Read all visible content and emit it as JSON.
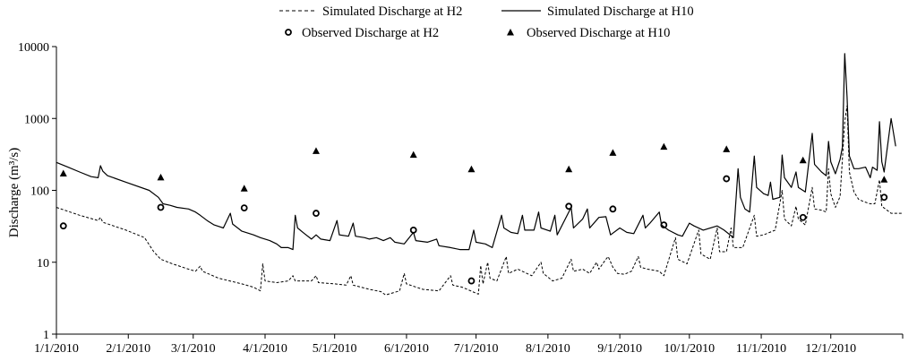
{
  "chart_data": {
    "type": "line",
    "title": "",
    "xlabel": "",
    "ylabel": "Discharge (m³/s)",
    "yscale": "log",
    "ylim": [
      1,
      10000
    ],
    "xlim": [
      0,
      365
    ],
    "y_ticks": [
      {
        "value": 1,
        "label": "1"
      },
      {
        "value": 10,
        "label": "10"
      },
      {
        "value": 100,
        "label": "100"
      },
      {
        "value": 1000,
        "label": "1000"
      },
      {
        "value": 10000,
        "label": "10000"
      }
    ],
    "x_ticks": [
      {
        "day": 0,
        "label": "1/1/2010"
      },
      {
        "day": 31,
        "label": "2/1/2010"
      },
      {
        "day": 59,
        "label": "3/1/2010"
      },
      {
        "day": 90,
        "label": "4/1/2010"
      },
      {
        "day": 120,
        "label": "5/1/2010"
      },
      {
        "day": 151,
        "label": "6/1/2010"
      },
      {
        "day": 181,
        "label": "7/1/2010"
      },
      {
        "day": 212,
        "label": "8/1/2010"
      },
      {
        "day": 243,
        "label": "9/1/2010"
      },
      {
        "day": 273,
        "label": "10/1/2010"
      },
      {
        "day": 304,
        "label": "11/1/2010"
      },
      {
        "day": 334,
        "label": "12/1/2010"
      }
    ],
    "grid": false,
    "legend_position": "top",
    "series": [
      {
        "name": "Simulated Discharge at H2",
        "style": "dashed-line",
        "points": [
          [
            0,
            58
          ],
          [
            10,
            45
          ],
          [
            18,
            38
          ],
          [
            19,
            42
          ],
          [
            20,
            36
          ],
          [
            30,
            28
          ],
          [
            38,
            22
          ],
          [
            42,
            14
          ],
          [
            45,
            11
          ],
          [
            50,
            9.5
          ],
          [
            57,
            8
          ],
          [
            60,
            7.5
          ],
          [
            62,
            8.8
          ],
          [
            63,
            7.5
          ],
          [
            70,
            6
          ],
          [
            80,
            5
          ],
          [
            85,
            4.5
          ],
          [
            88,
            4
          ],
          [
            89,
            9.5
          ],
          [
            90,
            5.5
          ],
          [
            95,
            5.2
          ],
          [
            100,
            5.5
          ],
          [
            102,
            6.5
          ],
          [
            103,
            5.5
          ],
          [
            110,
            5.5
          ],
          [
            112,
            6.5
          ],
          [
            113,
            5.2
          ],
          [
            120,
            5
          ],
          [
            125,
            4.8
          ],
          [
            127,
            6.5
          ],
          [
            128,
            4.8
          ],
          [
            135,
            4.2
          ],
          [
            140,
            3.9
          ],
          [
            142,
            3.5
          ],
          [
            148,
            4
          ],
          [
            150,
            7
          ],
          [
            151,
            5
          ],
          [
            158,
            4.2
          ],
          [
            165,
            4
          ],
          [
            170,
            6.5
          ],
          [
            171,
            4.8
          ],
          [
            175,
            4.5
          ],
          [
            182,
            3.6
          ],
          [
            183,
            9
          ],
          [
            184,
            5
          ],
          [
            186,
            10
          ],
          [
            187,
            6
          ],
          [
            190,
            5.5
          ],
          [
            194,
            12
          ],
          [
            195,
            7
          ],
          [
            199,
            8
          ],
          [
            205,
            6.5
          ],
          [
            209,
            10
          ],
          [
            210,
            7
          ],
          [
            214,
            5.5
          ],
          [
            218,
            6
          ],
          [
            222,
            11
          ],
          [
            223,
            7.5
          ],
          [
            227,
            8
          ],
          [
            230,
            7
          ],
          [
            233,
            10
          ],
          [
            234,
            8
          ],
          [
            237,
            11
          ],
          [
            238,
            12
          ],
          [
            240,
            8.5
          ],
          [
            242,
            7
          ],
          [
            245,
            6.8
          ],
          [
            248,
            7.5
          ],
          [
            251,
            12
          ],
          [
            252,
            8.5
          ],
          [
            255,
            8
          ],
          [
            260,
            7.5
          ],
          [
            262,
            6.5
          ],
          [
            267,
            22
          ],
          [
            268,
            11
          ],
          [
            272,
            9.5
          ],
          [
            277,
            28
          ],
          [
            278,
            13
          ],
          [
            282,
            11
          ],
          [
            285,
            30
          ],
          [
            286,
            14
          ],
          [
            289,
            14
          ],
          [
            291,
            30
          ],
          [
            292,
            16
          ],
          [
            296,
            16
          ],
          [
            301,
            45
          ],
          [
            302,
            23
          ],
          [
            305,
            24
          ],
          [
            310,
            28
          ],
          [
            313,
            100
          ],
          [
            314,
            40
          ],
          [
            317,
            32
          ],
          [
            319,
            60
          ],
          [
            320,
            40
          ],
          [
            323,
            33
          ],
          [
            326,
            110
          ],
          [
            327,
            55
          ],
          [
            330,
            53
          ],
          [
            332,
            50
          ],
          [
            333,
            200
          ],
          [
            334,
            90
          ],
          [
            336,
            58
          ],
          [
            338,
            82
          ],
          [
            340,
            900
          ],
          [
            341,
            1500
          ],
          [
            342,
            180
          ],
          [
            344,
            95
          ],
          [
            346,
            75
          ],
          [
            348,
            70
          ],
          [
            351,
            65
          ],
          [
            353,
            65
          ],
          [
            355,
            140
          ],
          [
            356,
            60
          ],
          [
            360,
            48
          ],
          [
            365,
            48
          ]
        ]
      },
      {
        "name": "Simulated Discharge at H10",
        "style": "solid-line",
        "points": [
          [
            0,
            245
          ],
          [
            5,
            210
          ],
          [
            10,
            180
          ],
          [
            15,
            155
          ],
          [
            18,
            150
          ],
          [
            19,
            220
          ],
          [
            20,
            185
          ],
          [
            22,
            160
          ],
          [
            30,
            130
          ],
          [
            40,
            100
          ],
          [
            44,
            80
          ],
          [
            46,
            65
          ],
          [
            49,
            62
          ],
          [
            52,
            58
          ],
          [
            57,
            55
          ],
          [
            60,
            50
          ],
          [
            62,
            45
          ],
          [
            65,
            38
          ],
          [
            68,
            33
          ],
          [
            72,
            30
          ],
          [
            75,
            48
          ],
          [
            76,
            34
          ],
          [
            80,
            27
          ],
          [
            85,
            24
          ],
          [
            88,
            22
          ],
          [
            92,
            20
          ],
          [
            95,
            18
          ],
          [
            97,
            16
          ],
          [
            100,
            16
          ],
          [
            102,
            15
          ],
          [
            103,
            45
          ],
          [
            104,
            30
          ],
          [
            107,
            25
          ],
          [
            110,
            21
          ],
          [
            112,
            24
          ],
          [
            114,
            21
          ],
          [
            118,
            20
          ],
          [
            121,
            38
          ],
          [
            122,
            24
          ],
          [
            126,
            23
          ],
          [
            128,
            35
          ],
          [
            129,
            23
          ],
          [
            133,
            22
          ],
          [
            135,
            21
          ],
          [
            138,
            22
          ],
          [
            141,
            20
          ],
          [
            144,
            22
          ],
          [
            146,
            19
          ],
          [
            150,
            18
          ],
          [
            154,
            26
          ],
          [
            155,
            20
          ],
          [
            160,
            19
          ],
          [
            164,
            21
          ],
          [
            165,
            17
          ],
          [
            170,
            16
          ],
          [
            174,
            15
          ],
          [
            178,
            15
          ],
          [
            180,
            28
          ],
          [
            181,
            19
          ],
          [
            185,
            18
          ],
          [
            188,
            16
          ],
          [
            192,
            45
          ],
          [
            193,
            30
          ],
          [
            196,
            26
          ],
          [
            199,
            25
          ],
          [
            201,
            45
          ],
          [
            202,
            28
          ],
          [
            206,
            28
          ],
          [
            208,
            50
          ],
          [
            209,
            30
          ],
          [
            213,
            27
          ],
          [
            215,
            45
          ],
          [
            216,
            24
          ],
          [
            222,
            58
          ],
          [
            223,
            30
          ],
          [
            227,
            40
          ],
          [
            229,
            55
          ],
          [
            230,
            30
          ],
          [
            234,
            42
          ],
          [
            237,
            43
          ],
          [
            239,
            24
          ],
          [
            243,
            30
          ],
          [
            246,
            26
          ],
          [
            249,
            25
          ],
          [
            253,
            45
          ],
          [
            254,
            30
          ],
          [
            256,
            35
          ],
          [
            260,
            50
          ],
          [
            261,
            33
          ],
          [
            264,
            28
          ],
          [
            268,
            24
          ],
          [
            270,
            23
          ],
          [
            273,
            35
          ],
          [
            275,
            32
          ],
          [
            279,
            28
          ],
          [
            285,
            32
          ],
          [
            288,
            28
          ],
          [
            292,
            22
          ],
          [
            294,
            200
          ],
          [
            295,
            80
          ],
          [
            297,
            55
          ],
          [
            299,
            50
          ],
          [
            301,
            300
          ],
          [
            302,
            110
          ],
          [
            305,
            90
          ],
          [
            307,
            85
          ],
          [
            308,
            130
          ],
          [
            309,
            75
          ],
          [
            312,
            80
          ],
          [
            313,
            310
          ],
          [
            314,
            150
          ],
          [
            317,
            110
          ],
          [
            319,
            180
          ],
          [
            320,
            110
          ],
          [
            323,
            95
          ],
          [
            326,
            620
          ],
          [
            327,
            230
          ],
          [
            330,
            180
          ],
          [
            332,
            160
          ],
          [
            333,
            480
          ],
          [
            334,
            250
          ],
          [
            336,
            170
          ],
          [
            338,
            270
          ],
          [
            339,
            400
          ],
          [
            340,
            8000
          ],
          [
            341,
            2000
          ],
          [
            342,
            300
          ],
          [
            344,
            200
          ],
          [
            346,
            200
          ],
          [
            349,
            210
          ],
          [
            351,
            150
          ],
          [
            352,
            210
          ],
          [
            354,
            190
          ],
          [
            355,
            900
          ],
          [
            356,
            250
          ],
          [
            357,
            180
          ],
          [
            360,
            1000
          ],
          [
            362,
            410
          ]
        ]
      },
      {
        "name": "Observed Discharge at H2",
        "style": "open-circle",
        "points": [
          [
            3,
            32
          ],
          [
            45,
            58
          ],
          [
            81,
            57
          ],
          [
            112,
            48
          ],
          [
            154,
            28
          ],
          [
            179,
            5.5
          ],
          [
            221,
            60
          ],
          [
            240,
            55
          ],
          [
            262,
            33
          ],
          [
            289,
            145
          ],
          [
            322,
            42
          ],
          [
            357,
            80
          ]
        ]
      },
      {
        "name": "Observed Discharge at H10",
        "style": "filled-triangle",
        "points": [
          [
            3,
            170
          ],
          [
            45,
            150
          ],
          [
            81,
            105
          ],
          [
            112,
            350
          ],
          [
            154,
            310
          ],
          [
            179,
            195
          ],
          [
            221,
            195
          ],
          [
            240,
            330
          ],
          [
            262,
            400
          ],
          [
            289,
            370
          ],
          [
            322,
            260
          ],
          [
            357,
            140
          ]
        ]
      }
    ]
  },
  "legend": {
    "items": [
      {
        "label": "Simulated Discharge at H2",
        "symbol": "dashed-line"
      },
      {
        "label": "Simulated Discharge at H10",
        "symbol": "solid-line"
      },
      {
        "label": "Observed Discharge at H2",
        "symbol": "open-circle"
      },
      {
        "label": "Observed Discharge at H10",
        "symbol": "filled-triangle"
      }
    ]
  }
}
